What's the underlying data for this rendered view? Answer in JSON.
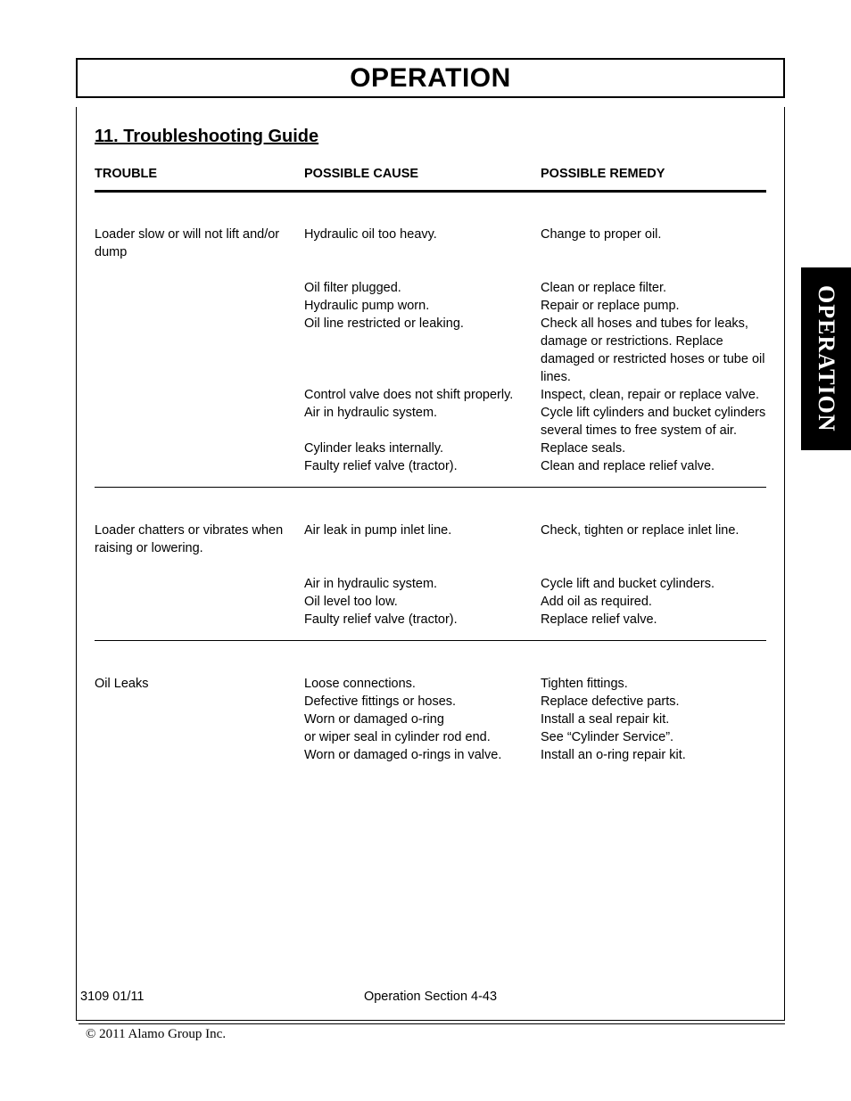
{
  "header": {
    "title": "OPERATION"
  },
  "sideTab": {
    "label": "OPERATION"
  },
  "section": {
    "title": "11. Troubleshooting Guide"
  },
  "table": {
    "headers": {
      "trouble": "TROUBLE",
      "cause": "POSSIBLE CAUSE",
      "remedy": "POSSIBLE REMEDY"
    },
    "groups": [
      {
        "trouble": "Loader slow or will not lift and/or dump",
        "rows": [
          {
            "cause": "Hydraulic oil too heavy.",
            "remedy": "Change to proper oil.",
            "gapAfter": true
          },
          {
            "cause": "Oil filter plugged.",
            "remedy": "Clean or replace filter."
          },
          {
            "cause": "Hydraulic pump worn.",
            "remedy": "Repair or replace pump."
          },
          {
            "cause": "Oil line restricted or leaking.",
            "remedy": "Check all hoses and tubes for leaks, damage or restrictions. Replace damaged or restricted hoses or tube oil lines."
          },
          {
            "cause": "Control valve does not shift properly.",
            "remedy": "Inspect, clean, repair or replace valve."
          },
          {
            "cause": "Air in hydraulic system.",
            "remedy": "Cycle lift cylinders and bucket cylinders several times to free system of air."
          },
          {
            "cause": "Cylinder leaks internally.",
            "remedy": "Replace seals."
          },
          {
            "cause": "Faulty relief valve (tractor).",
            "remedy": "Clean and replace relief valve."
          }
        ]
      },
      {
        "trouble": "Loader chatters or vibrates when raising or lowering.",
        "rows": [
          {
            "cause": "Air leak in pump inlet line.",
            "remedy": "Check, tighten or replace inlet line.",
            "gapAfter": true
          },
          {
            "cause": "Air in hydraulic system.",
            "remedy": "Cycle lift and bucket cylinders."
          },
          {
            "cause": "Oil level too low.",
            "remedy": "Add oil as required."
          },
          {
            "cause": "Faulty relief valve (tractor).",
            "remedy": "Replace relief valve."
          }
        ]
      },
      {
        "trouble": "Oil Leaks",
        "rows": [
          {
            "cause": "Loose connections.",
            "remedy": "Tighten fittings."
          },
          {
            "cause": "Defective fittings or hoses.",
            "remedy": "Replace defective parts."
          },
          {
            "cause": "Worn or damaged o-ring",
            "remedy": "Install a seal repair kit."
          },
          {
            "cause": "or wiper seal in cylinder rod end.",
            "remedy": "See “Cylinder Service”."
          },
          {
            "cause": "Worn or damaged o-rings in valve.",
            "remedy": "Install an o-ring repair kit."
          }
        ]
      }
    ]
  },
  "footer": {
    "left": "3109   01/11",
    "center": "Operation Section 4-43",
    "copyright": "© 2011 Alamo Group Inc."
  }
}
